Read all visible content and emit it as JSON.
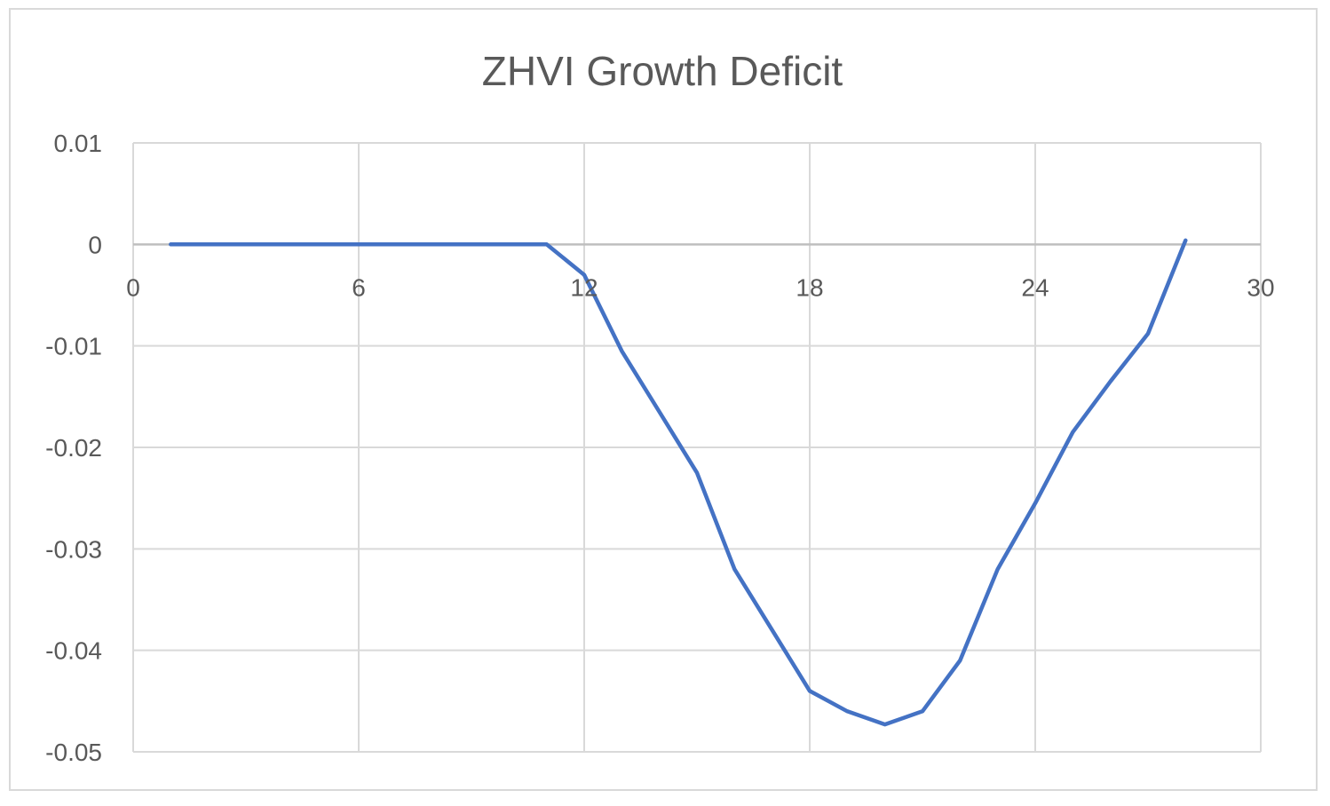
{
  "chart_data": {
    "type": "line",
    "title": "ZHVI Growth Deficit",
    "xlabel": "",
    "ylabel": "",
    "xlim": [
      0,
      30
    ],
    "ylim": [
      -0.05,
      0.01
    ],
    "x_ticks": [
      0,
      6,
      12,
      18,
      24,
      30
    ],
    "x_tick_labels": [
      "0",
      "6",
      "12",
      "18",
      "24",
      "30"
    ],
    "y_ticks": [
      0.01,
      0,
      -0.01,
      -0.02,
      -0.03,
      -0.04,
      -0.05
    ],
    "y_tick_labels": [
      "0.01",
      "0",
      "-0.01",
      "-0.02",
      "-0.03",
      "-0.04",
      "-0.05"
    ],
    "grid": true,
    "legend": "none",
    "series": [
      {
        "color": "#4472c4",
        "x": [
          1,
          2,
          3,
          4,
          5,
          6,
          7,
          8,
          9,
          10,
          11,
          12,
          13,
          14,
          15,
          16,
          17,
          18,
          19,
          20,
          21,
          22,
          23,
          24,
          25,
          26,
          27,
          28
        ],
        "y": [
          0,
          0,
          0,
          0,
          0,
          0,
          0,
          0,
          0,
          0,
          0,
          -0.003,
          -0.0105,
          -0.0165,
          -0.0225,
          -0.032,
          -0.038,
          -0.044,
          -0.046,
          -0.0473,
          -0.046,
          -0.041,
          -0.032,
          -0.0255,
          -0.0185,
          -0.0135,
          -0.0088,
          0.0004
        ]
      }
    ]
  }
}
